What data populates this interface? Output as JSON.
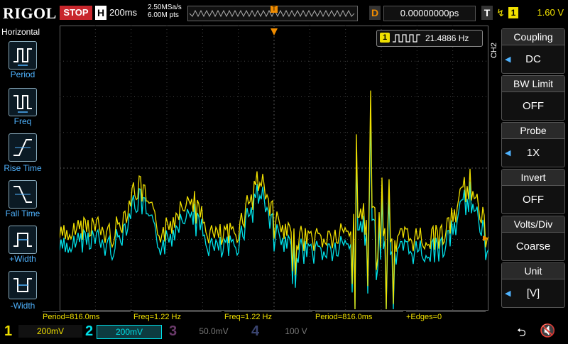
{
  "header": {
    "brand": "RIGOL",
    "run_state": "STOP",
    "timebase_key": "H",
    "timebase_value": "200ms",
    "sample_rate": "2.50MSa/s",
    "memory_depth": "6.00M pts",
    "trigger_pos_marker": "T",
    "delay_key": "D",
    "delay_value": "0.00000000ps",
    "trigger_key": "T",
    "trigger_source": "1",
    "trigger_level": "1.60 V"
  },
  "left_panel": {
    "title": "Horizontal",
    "items": [
      {
        "label": "Period",
        "icon": "period-icon"
      },
      {
        "label": "Freq",
        "icon": "freq-icon"
      },
      {
        "label": "Rise Time",
        "icon": "rise-time-icon"
      },
      {
        "label": "Fall Time",
        "icon": "fall-time-icon"
      },
      {
        "label": "+Width",
        "icon": "pos-width-icon"
      },
      {
        "label": "-Width",
        "icon": "neg-width-icon"
      }
    ]
  },
  "freq_counter": {
    "channel": "1",
    "value": "21.4886 Hz"
  },
  "right_panel": {
    "channel_label": "CH2",
    "items": [
      {
        "label": "Coupling",
        "value": "DC"
      },
      {
        "label": "BW Limit",
        "value": "OFF"
      },
      {
        "label": "Probe",
        "value": "1X"
      },
      {
        "label": "Invert",
        "value": "OFF"
      },
      {
        "label": "Volts/Div",
        "value": "Coarse"
      },
      {
        "label": "Unit",
        "value": "[V]"
      }
    ]
  },
  "measurements": [
    "Period=816.0ms",
    "Freq=1.22 Hz",
    "Freq=1.22 Hz",
    "Period=816.0ms",
    "+Edges=0"
  ],
  "channels": [
    {
      "num": "1",
      "scale": "200mV",
      "color": "#f0e000"
    },
    {
      "num": "2",
      "scale": "200mV",
      "color": "#00e0e8"
    },
    {
      "num": "3",
      "scale": "50.0mV",
      "color": "#c040c0"
    },
    {
      "num": "4",
      "scale": "100 V",
      "color": "#4060ff"
    }
  ],
  "colors": {
    "ch1": "#f0e000",
    "ch2": "#00e0e8",
    "trigger": "#f08c00",
    "accent": "#4fb3ff"
  }
}
